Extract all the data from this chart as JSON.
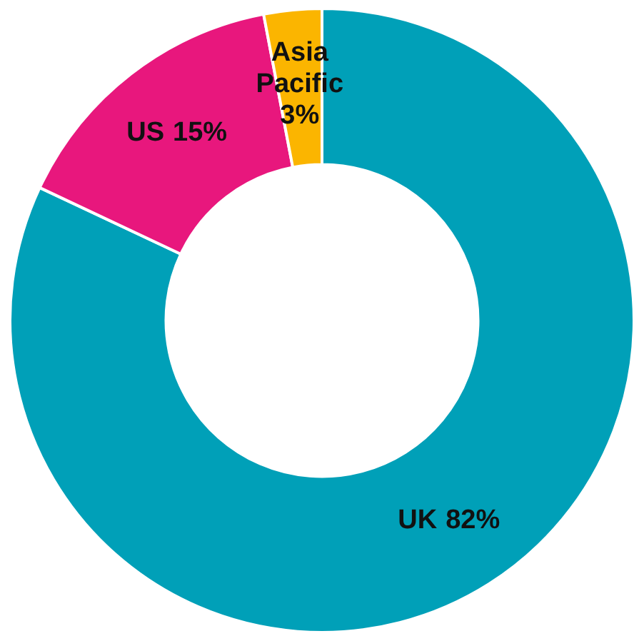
{
  "chart_data": {
    "type": "donut",
    "categories": [
      "UK",
      "US",
      "Asia Pacific"
    ],
    "values": [
      82,
      15,
      3
    ],
    "colors": [
      "#00a0b8",
      "#e8177d",
      "#fbb500"
    ],
    "value_labels": [
      "82%",
      "15%",
      "3%"
    ]
  }
}
